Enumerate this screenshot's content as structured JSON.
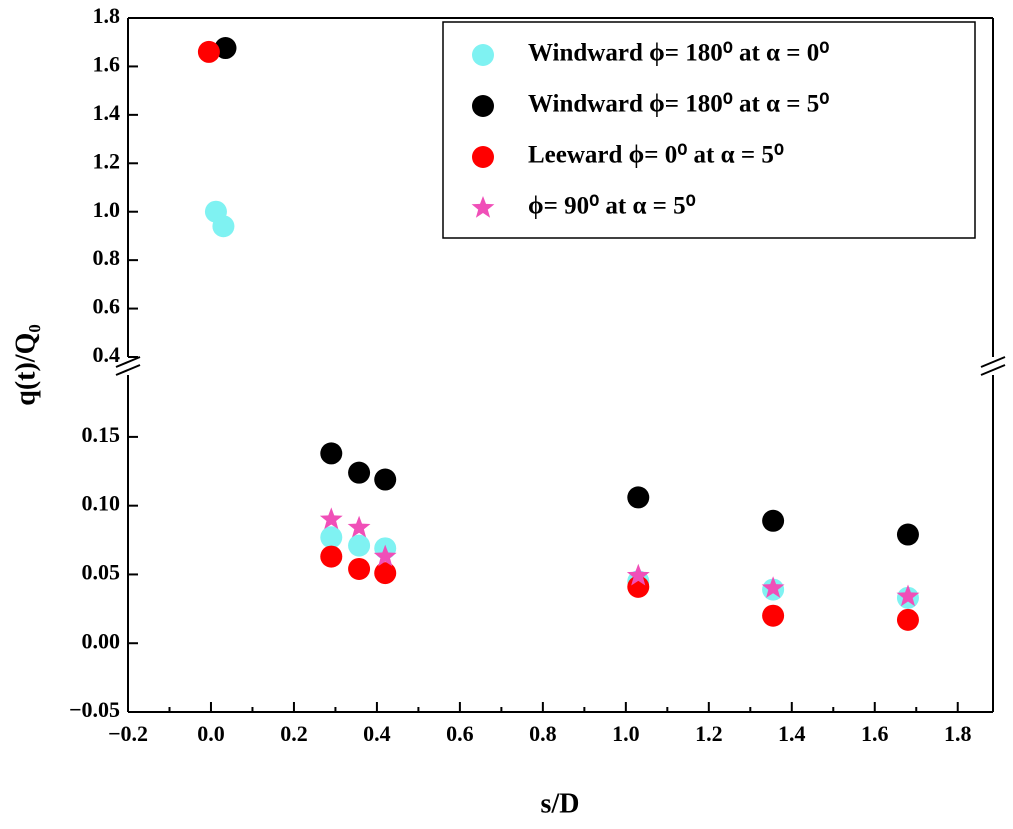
{
  "chart_data": {
    "type": "scatter",
    "xlabel": "s/D",
    "ylabel": "q(t)/Q₀",
    "xlim": [
      -0.2,
      1.885
    ],
    "xticks": [
      {
        "value": -0.2,
        "label": "−0.2"
      },
      {
        "value": 0,
        "label": "0.0"
      },
      0.2,
      0.4,
      0.6,
      0.8,
      {
        "value": 1,
        "label": "1.0"
      },
      1.2,
      1.4,
      1.6,
      1.8
    ],
    "y_segments": [
      {
        "ylim": [
          -0.05,
          0.195
        ],
        "yticks": [
          {
            "value": -0.05,
            "label": "−0.05"
          },
          {
            "value": 0,
            "label": "0.00"
          },
          {
            "value": 0.05,
            "label": "0.05"
          },
          {
            "value": 0.1,
            "label": "0.10"
          },
          {
            "value": 0.15,
            "label": "0.15"
          }
        ]
      },
      {
        "ylim": [
          0.4,
          1.8
        ],
        "yticks": [
          0.4,
          0.6,
          0.8,
          {
            "value": 1,
            "label": "1.0"
          },
          1.2,
          1.4,
          1.6,
          1.8
        ]
      }
    ],
    "y_break": true,
    "legend": "upper right",
    "series": [
      {
        "name": "Windward ϕ= 180⁰ at α = 0⁰",
        "color": "#7ff2f2",
        "marker": "circle",
        "x": [
          0.012,
          0.03,
          0.29,
          0.357,
          0.42,
          1.03,
          1.355,
          1.68
        ],
        "values": [
          1.0,
          0.94,
          0.077,
          0.071,
          0.069,
          0.045,
          0.039,
          0.033
        ]
      },
      {
        "name": "Windward ϕ= 180⁰ at α = 5⁰",
        "color": "#000000",
        "marker": "circle",
        "x": [
          0.035,
          0.29,
          0.357,
          0.42,
          1.03,
          1.355,
          1.68
        ],
        "values": [
          1.676,
          0.138,
          0.124,
          0.119,
          0.106,
          0.089,
          0.079
        ]
      },
      {
        "name": "Leeward ϕ= 0⁰ at α = 5⁰",
        "color": "#ff0000",
        "marker": "circle",
        "x": [
          -0.005,
          0.29,
          0.357,
          0.42,
          1.03,
          1.355,
          1.68
        ],
        "values": [
          1.66,
          0.063,
          0.054,
          0.051,
          0.041,
          0.02,
          0.017
        ]
      },
      {
        "name": "ϕ= 90⁰ at α = 5⁰",
        "color": "#f04fb8",
        "marker": "star",
        "x": [
          0.29,
          0.357,
          0.42,
          1.03,
          1.355,
          1.68
        ],
        "values": [
          0.09,
          0.084,
          0.063,
          0.049,
          0.04,
          0.034
        ]
      }
    ]
  }
}
